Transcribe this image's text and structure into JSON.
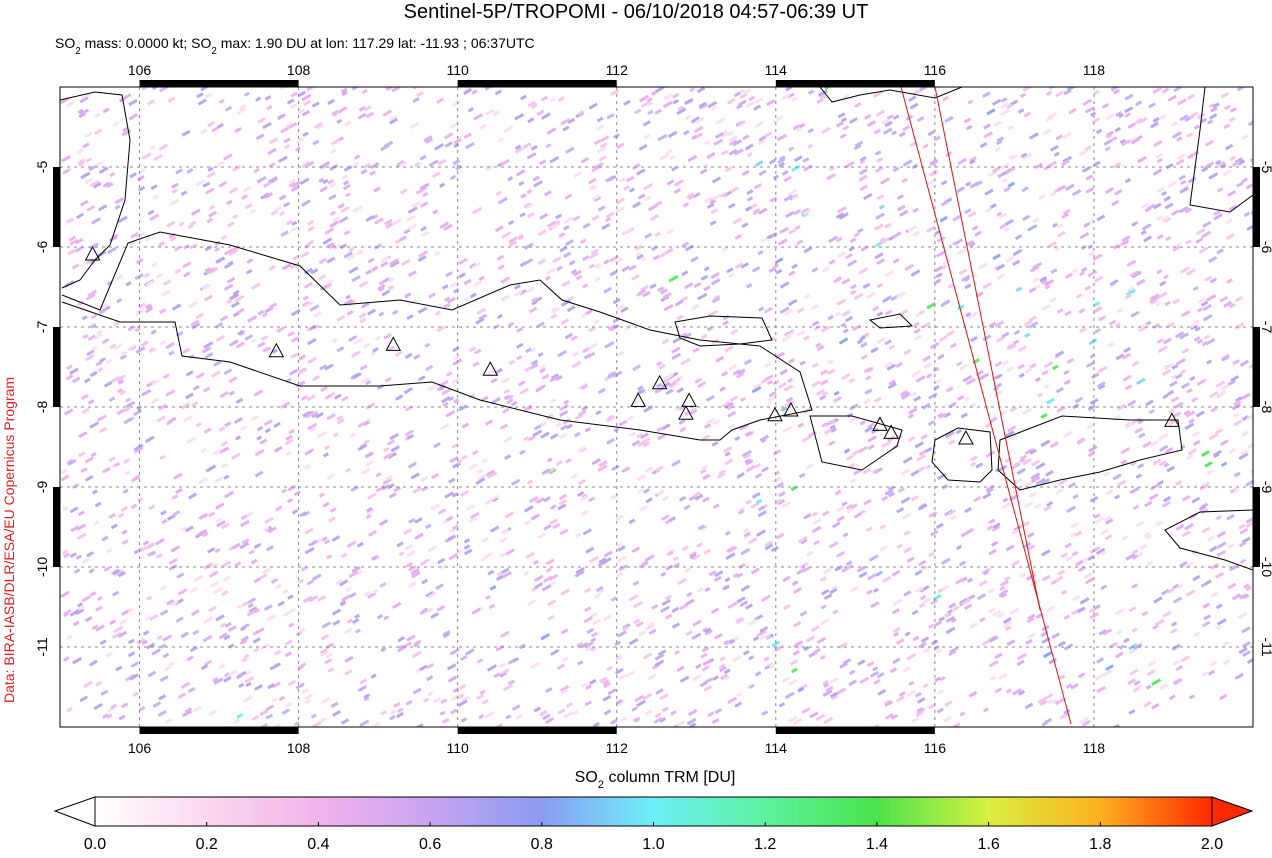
{
  "chart_data": {
    "type": "map",
    "title": "Sentinel-5P/TROPOMI - 06/10/2018 04:57-06:39 UT",
    "subtitle": [
      "SO",
      "2",
      " mass: 0.0000 kt; SO",
      "2",
      " max: 1.90 DU at lon: 117.29 lat: -11.93 ; 06:37UTC"
    ],
    "credit": "Data: BIRA-IASB/DLR/ESA/EU Copernicus Program",
    "xlim": [
      105,
      120
    ],
    "ylim": [
      -12,
      -4
    ],
    "xticks": [
      106,
      108,
      110,
      112,
      114,
      116,
      118
    ],
    "yticks": [
      -5,
      -6,
      -7,
      -8,
      -9,
      -10,
      -11
    ],
    "grid": true,
    "volcanoes": {
      "lon": [
        105.41,
        107.72,
        109.19,
        110.41,
        112.27,
        112.54,
        112.91,
        112.87,
        113.99,
        114.19,
        115.31,
        115.45,
        116.39,
        118.98
      ],
      "lat": [
        -6.1,
        -7.31,
        -7.23,
        -7.54,
        -7.93,
        -7.71,
        -7.93,
        -8.09,
        -8.11,
        -8.05,
        -8.23,
        -8.33,
        -8.4,
        -8.18
      ]
    },
    "colorbar": {
      "label": [
        "SO",
        "2",
        " column TRM [DU]"
      ],
      "lim": [
        0,
        2
      ],
      "ticks": [
        {
          "value": 0,
          "label": "0.0"
        },
        {
          "value": 0.2,
          "label": "0.2"
        },
        {
          "value": 0.4,
          "label": "0.4"
        },
        {
          "value": 0.6,
          "label": "0.6"
        },
        {
          "value": 0.8,
          "label": "0.8"
        },
        {
          "value": 1,
          "label": "1.0"
        },
        {
          "value": 1.2,
          "label": "1.2"
        },
        {
          "value": 1.4,
          "label": "1.4"
        },
        {
          "value": 1.6,
          "label": "1.6"
        },
        {
          "value": 1.8,
          "label": "1.8"
        },
        {
          "value": 2,
          "label": "2.0"
        }
      ]
    }
  }
}
